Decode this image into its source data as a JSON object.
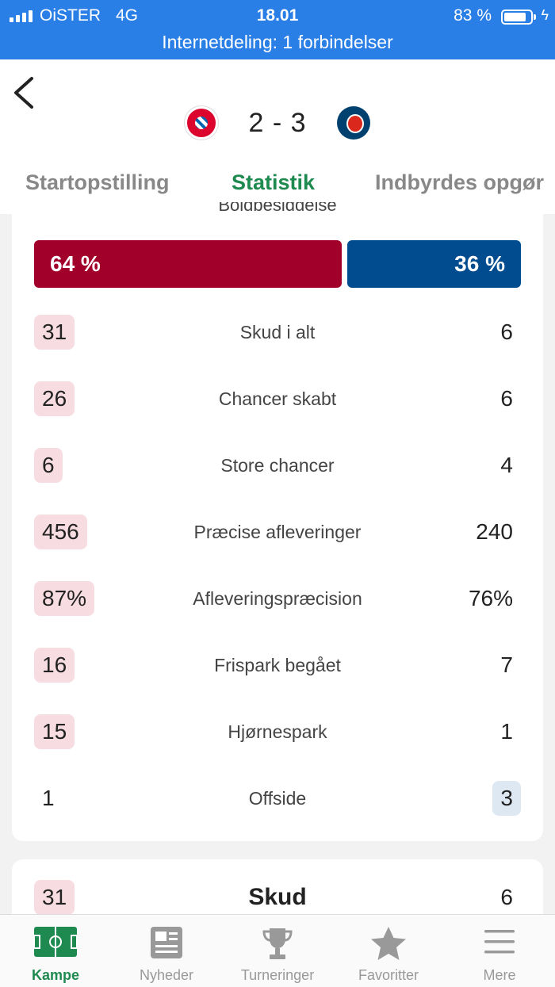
{
  "status_bar": {
    "carrier": "OiSTER",
    "network": "4G",
    "time": "18.01",
    "battery_percent": "83 %",
    "hotspot": "Internetdeling: 1 forbindelser"
  },
  "match": {
    "score": "2 - 3",
    "home_crest": "fc-bayern-crest",
    "away_crest": "psg-crest"
  },
  "tabs": [
    {
      "label": "Startopstilling"
    },
    {
      "label": "Statistik"
    },
    {
      "label": "Indbyrdes opgør"
    }
  ],
  "active_tab": "Statistik",
  "possession": {
    "partial_label": "Boldbesiddelse",
    "home": "64 %",
    "away": "36 %",
    "home_fraction": 0.64,
    "home_color": "#a1002a",
    "away_color": "#004c8f"
  },
  "stats": [
    {
      "label": "Skud i alt",
      "home": "31",
      "away": "6",
      "leader": "home"
    },
    {
      "label": "Chancer skabt",
      "home": "26",
      "away": "6",
      "leader": "home"
    },
    {
      "label": "Store chancer",
      "home": "6",
      "away": "4",
      "leader": "home"
    },
    {
      "label": "Præcise afleveringer",
      "home": "456",
      "away": "240",
      "leader": "home"
    },
    {
      "label": "Afleveringspræcision",
      "home": "87%",
      "away": "76%",
      "leader": "home"
    },
    {
      "label": "Frispark begået",
      "home": "16",
      "away": "7",
      "leader": "home"
    },
    {
      "label": "Hjørnespark",
      "home": "15",
      "away": "1",
      "leader": "home"
    },
    {
      "label": "Offside",
      "home": "1",
      "away": "3",
      "leader": "away"
    }
  ],
  "shots_section": {
    "label": "Skud",
    "home": "31",
    "away": "6"
  },
  "bottom_nav": [
    {
      "label": "Kampe",
      "icon": "pitch-icon"
    },
    {
      "label": "Nyheder",
      "icon": "newspaper-icon"
    },
    {
      "label": "Turneringer",
      "icon": "trophy-icon"
    },
    {
      "label": "Favoritter",
      "icon": "star-icon"
    },
    {
      "label": "Mere",
      "icon": "menu-icon"
    }
  ],
  "accent_color": "#1f8a4f"
}
